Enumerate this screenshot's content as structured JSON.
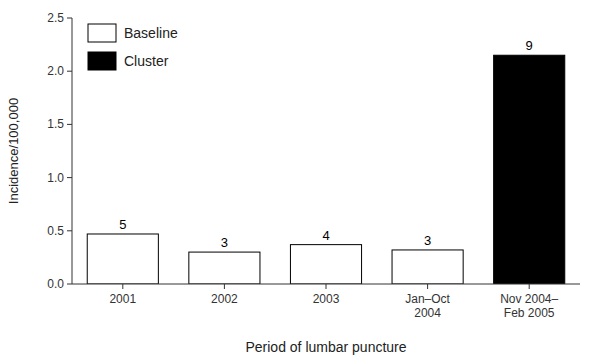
{
  "chart_data": {
    "type": "bar",
    "categories": [
      "2001",
      "2002",
      "2003",
      "Jan–Oct\n2004",
      "Nov 2004–\nFeb 2005"
    ],
    "series": [
      {
        "name": "Baseline",
        "color": "white",
        "values": [
          0.47,
          0.3,
          0.37,
          0.32,
          null
        ],
        "case_counts": [
          5,
          3,
          4,
          3,
          null
        ]
      },
      {
        "name": "Cluster",
        "color": "black",
        "values": [
          null,
          null,
          null,
          null,
          2.15
        ],
        "case_counts": [
          null,
          null,
          null,
          null,
          9
        ]
      }
    ],
    "stacked": true,
    "ylabel": "Incidence/100,000",
    "xlabel": "Period of lumbar puncture",
    "ylim": [
      0,
      2.5
    ],
    "yticks": [
      {
        "value": 0,
        "label": "0.0"
      },
      0.5,
      {
        "value": 1.0,
        "label": "1.0"
      },
      1.5,
      {
        "value": 2.0,
        "label": "2.0"
      },
      2.5
    ],
    "grid": false,
    "legend": "upper left"
  }
}
